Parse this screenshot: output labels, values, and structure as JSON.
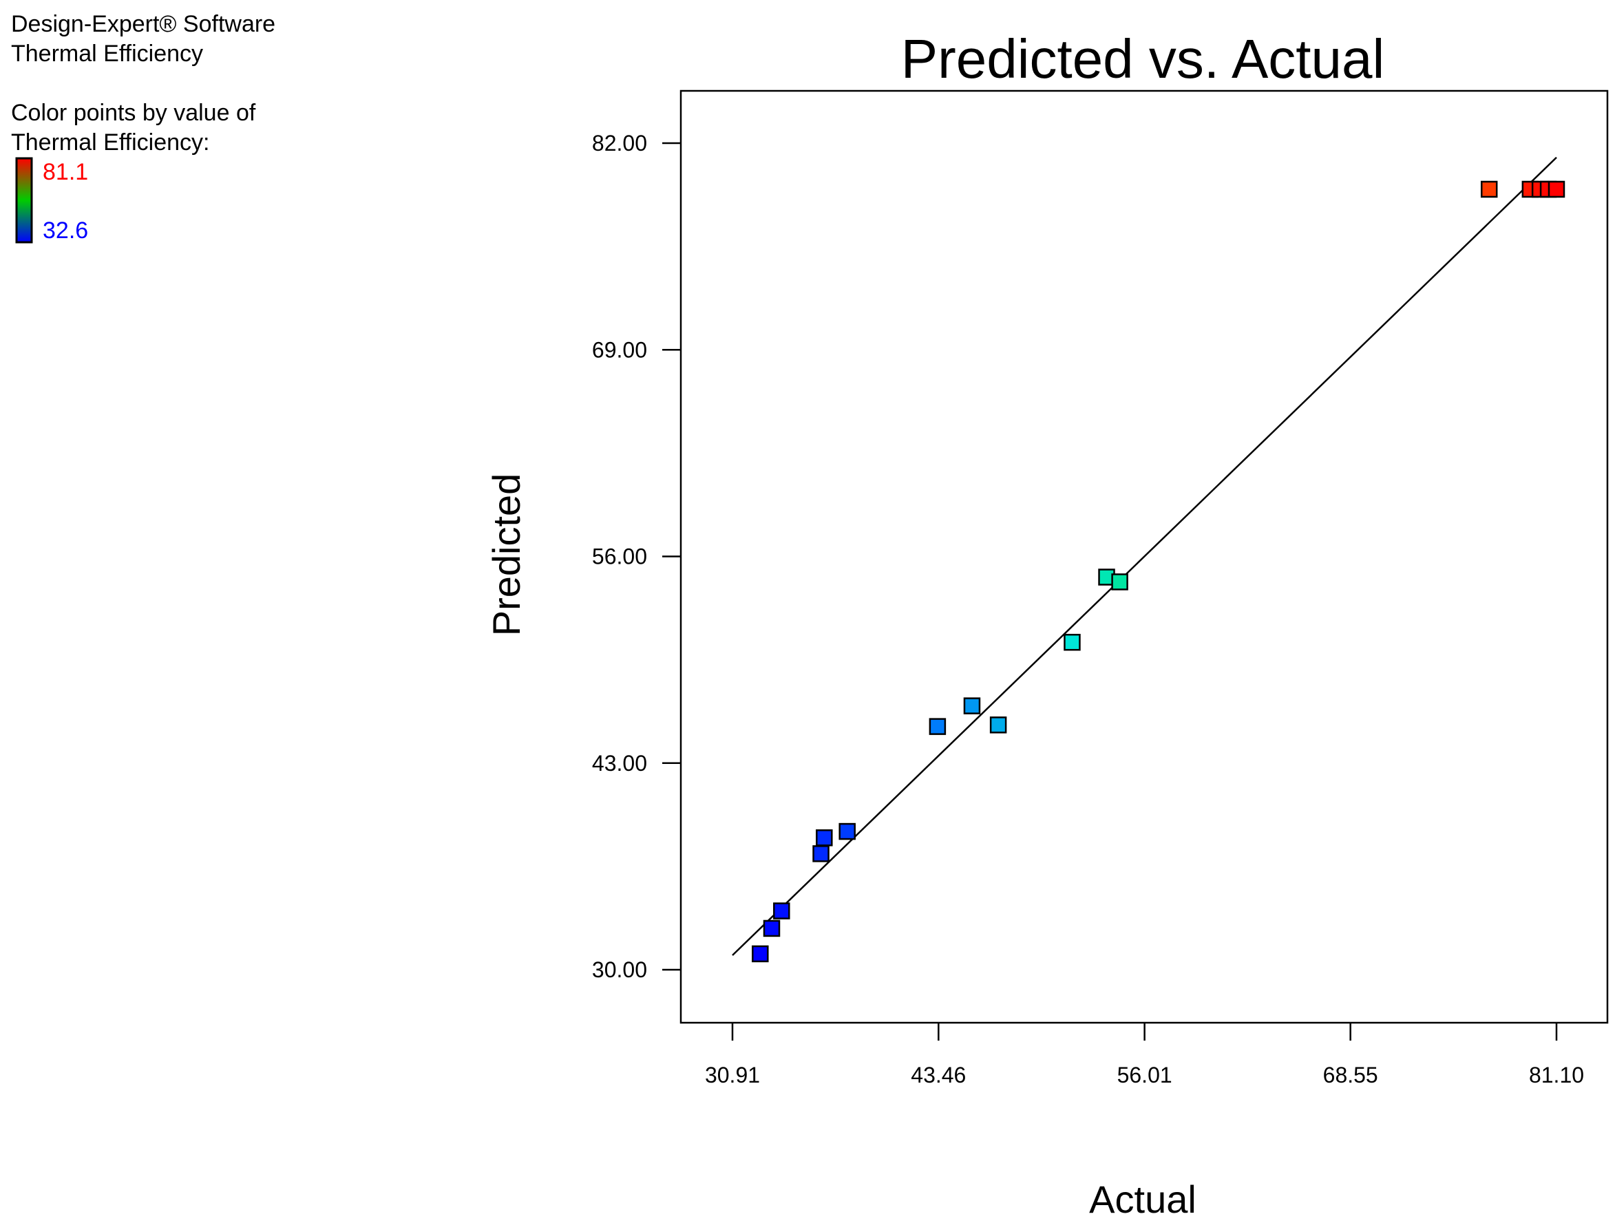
{
  "info": {
    "software": "Design-Expert® Software",
    "response": "Thermal Efficiency",
    "color_note_1": "Color points by value of",
    "color_note_2": "Thermal Efficiency:"
  },
  "legend": {
    "max_label": "81.1",
    "min_label": "32.6",
    "max_color": "#ff0000",
    "min_color": "#0000ff"
  },
  "chart_data": {
    "type": "scatter",
    "title": "Predicted vs. Actual",
    "xlabel": "Actual",
    "ylabel": "Predicted",
    "xlim": [
      30.91,
      81.1
    ],
    "ylim": [
      30.0,
      82.0
    ],
    "x_ticks": [
      "30.91",
      "43.46",
      "56.01",
      "68.55",
      "81.10"
    ],
    "y_ticks": [
      "30.00",
      "43.00",
      "56.00",
      "69.00",
      "82.00"
    ],
    "reference_line": [
      [
        30.91,
        30.91
      ],
      [
        81.1,
        81.1
      ]
    ],
    "color_range": [
      32.6,
      81.1
    ],
    "points": [
      {
        "x": 32.6,
        "y": 31.0
      },
      {
        "x": 33.3,
        "y": 32.6
      },
      {
        "x": 33.9,
        "y": 33.7
      },
      {
        "x": 36.3,
        "y": 37.3
      },
      {
        "x": 36.5,
        "y": 38.3
      },
      {
        "x": 37.9,
        "y": 38.7
      },
      {
        "x": 43.4,
        "y": 45.3
      },
      {
        "x": 45.5,
        "y": 46.6
      },
      {
        "x": 47.1,
        "y": 45.4
      },
      {
        "x": 51.6,
        "y": 50.6
      },
      {
        "x": 53.7,
        "y": 54.7
      },
      {
        "x": 54.5,
        "y": 54.4
      },
      {
        "x": 77.0,
        "y": 79.1
      },
      {
        "x": 79.5,
        "y": 79.1
      },
      {
        "x": 80.1,
        "y": 79.1
      },
      {
        "x": 80.6,
        "y": 79.1
      },
      {
        "x": 81.1,
        "y": 79.1
      }
    ]
  }
}
